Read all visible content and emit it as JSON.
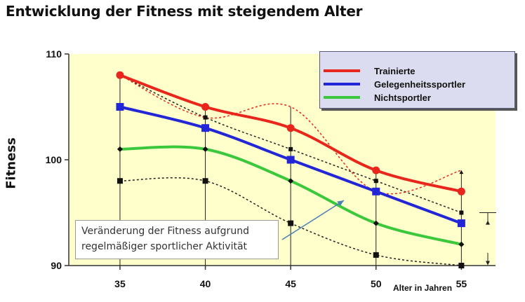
{
  "chart_data": {
    "type": "line",
    "title": "Entwicklung der Fitness mit steigendem Alter",
    "xlabel": "Alter in Jahren",
    "ylabel": "Fitness",
    "x": [
      35,
      40,
      45,
      50,
      55
    ],
    "x_ticks": [
      "35",
      "40",
      "45",
      "50",
      "55"
    ],
    "y_ticks": [
      "90",
      "100",
      "110"
    ],
    "xlim": [
      32,
      57
    ],
    "ylim": [
      90,
      110
    ],
    "legend_position": "top-right",
    "series": [
      {
        "name": "Trainierte",
        "color": "#e8261b",
        "values": [
          108,
          105,
          103,
          99,
          97
        ]
      },
      {
        "name": "Gelegenheitssportler",
        "color": "#2326d6",
        "values": [
          105,
          103,
          100,
          97,
          94
        ]
      },
      {
        "name": "Nichtsportler",
        "color": "#3cc83c",
        "values": [
          101,
          101,
          98,
          94,
          92
        ]
      }
    ],
    "range_lines": {
      "upper": [
        108,
        104,
        101,
        98,
        95
      ],
      "lower": [
        98,
        98,
        94,
        91,
        90
      ],
      "red_dotted": [
        108,
        104,
        105,
        97,
        99
      ]
    },
    "annotation": "Veränderung der Fitness aufgrund regelmäßiger sportlicher Aktivität"
  }
}
